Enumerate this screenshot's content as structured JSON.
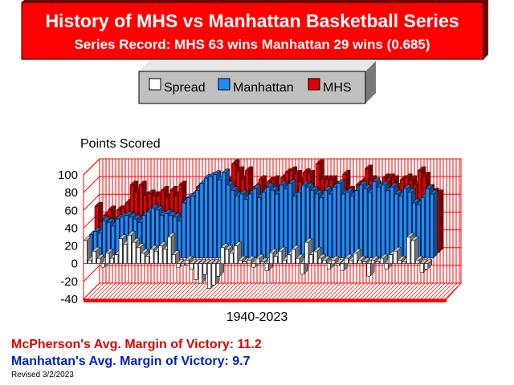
{
  "header": {
    "title": "History of MHS vs Manhattan Basketball Series",
    "record": "Series Record:  MHS 63 wins  Manhattan 29 wins (0.685)"
  },
  "footer": {
    "mhs_margin": "McPherson's Avg. Margin of Victory: 11.2",
    "manhattan_margin": "Manhattan's Avg. Margin of Victory: 9.7",
    "revised": "Revised 3/2/2023"
  },
  "colors": {
    "title_bg": "#ff0000",
    "manhattan": "#1e8bff",
    "mhs": "#e00000",
    "spread": "#ffffff",
    "grid": "#ff0000",
    "legend_bg": "#c0c0c0"
  },
  "chart_data": {
    "type": "bar",
    "ylabel": "Points Scored",
    "xlabel": "1940-2023",
    "ylim": [
      -40,
      100
    ],
    "yticks": [
      100,
      80,
      60,
      40,
      20,
      0,
      -20,
      -40
    ],
    "grid": true,
    "legend": "top-center",
    "series": [
      {
        "name": "Spread",
        "values": [
          26,
          4,
          14,
          6,
          -4,
          12,
          6,
          10,
          28,
          22,
          32,
          24,
          18,
          12,
          8,
          16,
          14,
          20,
          16,
          30,
          10,
          -4,
          -2,
          4,
          -6,
          -18,
          -22,
          -12,
          -28,
          -24,
          -14,
          18,
          16,
          12,
          20,
          4,
          2,
          4,
          -4,
          6,
          2,
          -8,
          12,
          8,
          14,
          4,
          10,
          16,
          6,
          -12,
          24,
          10,
          14,
          6,
          4,
          -6,
          4,
          -2,
          -8,
          6,
          4,
          12,
          4,
          2,
          -14,
          4,
          2,
          6,
          -6,
          10,
          14,
          4,
          2,
          30,
          26,
          4,
          -10,
          -6
        ]
      },
      {
        "name": "Manhattan",
        "values": [
          26,
          30,
          28,
          42,
          40,
          36,
          44,
          46,
          48,
          46,
          44,
          40,
          48,
          52,
          56,
          54,
          48,
          50,
          48,
          46,
          42,
          62,
          68,
          70,
          76,
          84,
          90,
          92,
          94,
          88,
          96,
          82,
          76,
          70,
          72,
          66,
          72,
          78,
          68,
          74,
          80,
          76,
          72,
          82,
          78,
          84,
          70,
          74,
          82,
          80,
          76,
          72,
          68,
          76,
          72,
          80,
          84,
          72,
          74,
          70,
          76,
          82,
          78,
          74,
          86,
          80,
          82,
          76,
          80,
          72,
          70,
          78,
          74,
          62,
          60,
          68,
          78,
          72
        ]
      },
      {
        "name": "MHS",
        "values": [
          52,
          34,
          42,
          48,
          36,
          48,
          50,
          56,
          76,
          68,
          76,
          64,
          66,
          64,
          64,
          70,
          62,
          70,
          64,
          76,
          52,
          58,
          66,
          74,
          70,
          66,
          68,
          80,
          66,
          64,
          82,
          100,
          92,
          82,
          92,
          70,
          74,
          82,
          64,
          80,
          82,
          68,
          84,
          90,
          92,
          88,
          80,
          90,
          88,
          68,
          100,
          82,
          82,
          82,
          76,
          74,
          88,
          70,
          66,
          76,
          80,
          94,
          82,
          76,
          72,
          84,
          84,
          82,
          74,
          82,
          84,
          82,
          76,
          92,
          86,
          72,
          68,
          66
        ]
      }
    ]
  }
}
